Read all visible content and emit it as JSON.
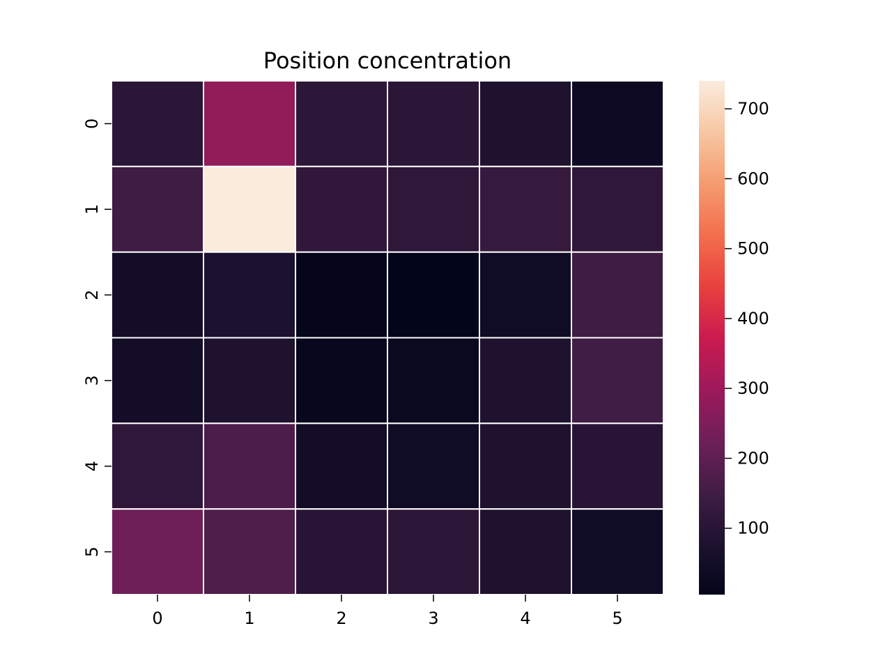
{
  "chart_data": {
    "type": "heatmap",
    "title": "Position concentration",
    "xlabel": "",
    "ylabel": "",
    "x_tick_labels": [
      "0",
      "1",
      "2",
      "3",
      "4",
      "5"
    ],
    "y_tick_labels": [
      "0",
      "1",
      "2",
      "3",
      "4",
      "5"
    ],
    "values": [
      [
        105,
        280,
        110,
        105,
        80,
        35
      ],
      [
        145,
        740,
        120,
        115,
        130,
        115
      ],
      [
        50,
        75,
        10,
        5,
        45,
        145
      ],
      [
        50,
        80,
        15,
        25,
        80,
        150
      ],
      [
        115,
        170,
        50,
        45,
        80,
        100
      ],
      [
        225,
        175,
        100,
        110,
        80,
        45
      ]
    ],
    "colorbar": {
      "min": 5,
      "max": 740,
      "ticks": [
        100,
        200,
        300,
        400,
        500,
        600,
        700
      ],
      "colormap": "rocket"
    },
    "cell_gap_color": "#ffffff",
    "grid": false
  }
}
